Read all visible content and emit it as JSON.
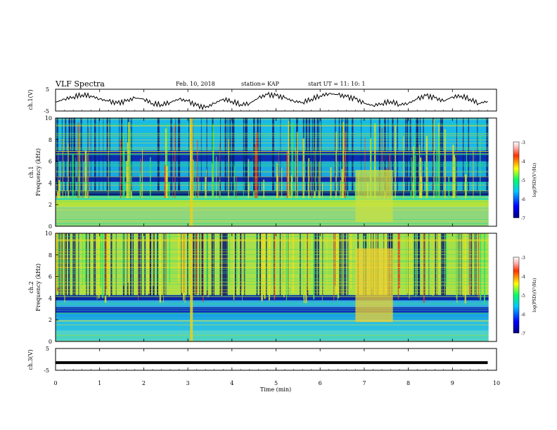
{
  "header": {
    "title": "VLF Spectra",
    "date": "Feb. 10, 2018",
    "station": "station= KAP",
    "start": "start  UT =   11: 10: 1"
  },
  "chart_data": [
    {
      "type": "line",
      "ylabel": "ch.1(V)",
      "ylim": [
        -5,
        5
      ],
      "yticks": [
        "5",
        "-5"
      ],
      "x": [
        0,
        0.2,
        0.4,
        0.6,
        0.8,
        1.0,
        1.2,
        1.4,
        1.6,
        1.8,
        2.0,
        2.2,
        2.4,
        2.6,
        2.8,
        3.0,
        3.2,
        3.4,
        3.6,
        3.8,
        4.0,
        4.2,
        4.4,
        4.6,
        4.8,
        5.0,
        5.2,
        5.4,
        5.6,
        5.8,
        6.0,
        6.2,
        6.4,
        6.6,
        6.8,
        7.0,
        7.2,
        7.4,
        7.6,
        7.8,
        8.0,
        8.2,
        8.4,
        8.6,
        8.8,
        9.0,
        9.2,
        9.4,
        9.6,
        9.8
      ],
      "values": [
        -1,
        0.5,
        1.5,
        2.5,
        2.0,
        0.5,
        -0.5,
        -1.5,
        -0.5,
        1.0,
        0.5,
        -1.5,
        -2.0,
        -1.0,
        0.5,
        -0.5,
        -2.5,
        -3.5,
        -1.5,
        0.5,
        -0.5,
        -2.0,
        -1.5,
        1.0,
        2.5,
        2.0,
        1.0,
        -0.5,
        -1.0,
        0.5,
        2.0,
        3.0,
        2.5,
        1.5,
        0.5,
        -1.5,
        -2.5,
        -1.5,
        -0.5,
        -2.0,
        -1.5,
        0.5,
        2.0,
        1.0,
        -0.5,
        1.5,
        2.0,
        0.5,
        -1.5,
        -0.5
      ]
    },
    {
      "type": "heatmap",
      "ylabel": "Frequency (kHz)",
      "channel": "ch.1",
      "ylim": [
        0,
        10
      ],
      "yticks": [
        "0",
        "2",
        "4",
        "6",
        "8",
        "10"
      ],
      "colorbar": {
        "label": "log(PSD)(V²/Hz)",
        "range": [
          -7,
          -3
        ],
        "ticks": [
          "-3",
          "-4",
          "-5",
          "-6",
          "-7"
        ]
      },
      "bands": [
        {
          "from": 0,
          "to": 1.8,
          "color": "#8fd67c"
        },
        {
          "from": 1.8,
          "to": 2.4,
          "color": "#b6e23a"
        },
        {
          "from": 2.4,
          "to": 2.8,
          "color": "#3fd9a0"
        },
        {
          "from": 2.8,
          "to": 3.3,
          "color": "#0a1f80"
        },
        {
          "from": 3.3,
          "to": 4.1,
          "color": "#1fb8d8"
        },
        {
          "from": 4.1,
          "to": 4.6,
          "color": "#0a2aa8"
        },
        {
          "from": 4.6,
          "to": 6.0,
          "color": "#1aa8e0"
        },
        {
          "from": 6.0,
          "to": 7.0,
          "color": "#0b2fb0"
        },
        {
          "from": 7.0,
          "to": 10,
          "color": "#18b8e8"
        }
      ],
      "burst": {
        "from_min": 6.8,
        "to_min": 7.65,
        "from_khz": 0.4,
        "to_khz": 5.2,
        "color": "#c8e040"
      }
    },
    {
      "type": "heatmap",
      "ylabel": "Frequency (kHz)",
      "channel": "ch.2",
      "ylim": [
        0,
        10
      ],
      "yticks": [
        "0",
        "2",
        "4",
        "6",
        "8",
        "10"
      ],
      "colorbar": {
        "label": "log(PSD)(V²/Hz)",
        "range": [
          -7,
          -3
        ],
        "ticks": [
          "-3",
          "-4",
          "-5",
          "-6",
          "-7"
        ]
      },
      "bands": [
        {
          "from": 0,
          "to": 1.0,
          "color": "#4fd2c8"
        },
        {
          "from": 1.0,
          "to": 2.0,
          "color": "#2bc0e0"
        },
        {
          "from": 2.0,
          "to": 2.6,
          "color": "#1aa0e8"
        },
        {
          "from": 2.6,
          "to": 3.2,
          "color": "#1030c0"
        },
        {
          "from": 3.2,
          "to": 3.8,
          "color": "#30b0e0"
        },
        {
          "from": 3.8,
          "to": 4.3,
          "color": "#0a28a0"
        },
        {
          "from": 4.3,
          "to": 10,
          "color": "#a6e04a"
        }
      ],
      "burst": {
        "from_min": 6.8,
        "to_min": 7.65,
        "from_khz": 1.8,
        "to_khz": 8.6,
        "color": "#f0d030"
      }
    },
    {
      "type": "line",
      "ylabel": "ch.3(V)",
      "ylim": [
        -5,
        5
      ],
      "yticks": [
        "5",
        "-5"
      ],
      "x": [
        0,
        9.8
      ],
      "values": [
        -1.5,
        -1.5
      ]
    }
  ],
  "x_axis": {
    "label": "Time (min)",
    "range": [
      0,
      10
    ],
    "ticks": [
      "0",
      "1",
      "2",
      "3",
      "4",
      "5",
      "6",
      "7",
      "8",
      "9",
      "10"
    ]
  }
}
